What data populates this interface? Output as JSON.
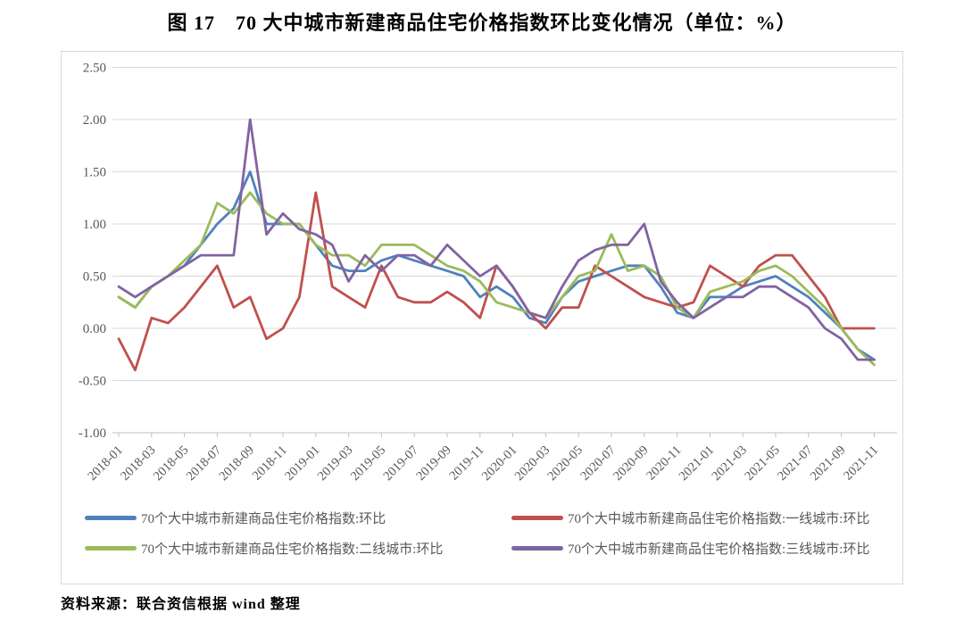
{
  "page": {
    "title": "图 17　70 大中城市新建商品住宅价格指数环比变化情况（单位：%）",
    "source": "资料来源：联合资信根据 wind 整理"
  },
  "chart_data": {
    "type": "line",
    "title": "图 17　70 大中城市新建商品住宅价格指数环比变化情况（单位：%）",
    "xlabel": "",
    "ylabel": "",
    "ylim": [
      -1.0,
      2.5
    ],
    "y_tick_labels": [
      "2.50",
      "2.00",
      "1.50",
      "1.00",
      "0.50",
      "0.00",
      "-0.50",
      "-1.00"
    ],
    "y_tick_values": [
      2.5,
      2.0,
      1.5,
      1.0,
      0.5,
      0.0,
      -0.5,
      -1.0
    ],
    "grid": true,
    "legend_position": "bottom",
    "axis_text_color": "#595959",
    "grid_color": "#d9d9d9",
    "axis_line_color": "#bfbfbf",
    "x_tick_labels": [
      "2018-01",
      "2018-03",
      "2018-05",
      "2018-07",
      "2018-09",
      "2018-11",
      "2019-01",
      "2019-03",
      "2019-05",
      "2019-07",
      "2019-09",
      "2019-11",
      "2020-01",
      "2020-03",
      "2020-05",
      "2020-07",
      "2020-09",
      "2020-11",
      "2021-01",
      "2021-03",
      "2021-05",
      "2021-07",
      "2021-09",
      "2021-11"
    ],
    "categories": [
      "2018-01",
      "2018-02",
      "2018-03",
      "2018-04",
      "2018-05",
      "2018-06",
      "2018-07",
      "2018-08",
      "2018-09",
      "2018-10",
      "2018-11",
      "2018-12",
      "2019-01",
      "2019-02",
      "2019-03",
      "2019-04",
      "2019-05",
      "2019-06",
      "2019-07",
      "2019-08",
      "2019-09",
      "2019-10",
      "2019-11",
      "2019-12",
      "2020-01",
      "2020-02",
      "2020-03",
      "2020-04",
      "2020-05",
      "2020-06",
      "2020-07",
      "2020-08",
      "2020-09",
      "2020-10",
      "2020-11",
      "2020-12",
      "2021-01",
      "2021-02",
      "2021-03",
      "2021-04",
      "2021-05",
      "2021-06",
      "2021-07",
      "2021-08",
      "2021-09",
      "2021-10",
      "2021-11"
    ],
    "series": [
      {
        "name": "70个大中城市新建商品住宅价格指数:环比",
        "color": "#4f81bd",
        "values": [
          0.3,
          0.2,
          0.4,
          0.5,
          0.6,
          0.8,
          1.0,
          1.15,
          1.5,
          1.0,
          1.0,
          1.0,
          0.8,
          0.6,
          0.55,
          0.55,
          0.65,
          0.7,
          0.65,
          0.6,
          0.55,
          0.5,
          0.3,
          0.4,
          0.3,
          0.1,
          0.05,
          0.3,
          0.45,
          0.5,
          0.55,
          0.6,
          0.6,
          0.4,
          0.15,
          0.1,
          0.3,
          0.3,
          0.4,
          0.45,
          0.5,
          0.4,
          0.3,
          0.15,
          0.0,
          -0.2,
          -0.3
        ]
      },
      {
        "name": "70个大中城市新建商品住宅价格指数:一线城市:环比",
        "color": "#c0504d",
        "values": [
          -0.1,
          -0.4,
          0.1,
          0.05,
          0.2,
          0.4,
          0.6,
          0.2,
          0.3,
          -0.1,
          0.0,
          0.3,
          1.3,
          0.4,
          0.3,
          0.2,
          0.6,
          0.3,
          0.25,
          0.25,
          0.35,
          0.25,
          0.1,
          0.6,
          0.4,
          0.15,
          0.0,
          0.2,
          0.2,
          0.6,
          0.5,
          0.4,
          0.3,
          0.25,
          0.2,
          0.25,
          0.6,
          0.5,
          0.4,
          0.6,
          0.7,
          0.7,
          0.5,
          0.3,
          0.0,
          0.0,
          0.0
        ]
      },
      {
        "name": "70个大中城市新建商品住宅价格指数:二线城市:环比",
        "color": "#9bbb59",
        "values": [
          0.3,
          0.2,
          0.4,
          0.5,
          0.65,
          0.8,
          1.2,
          1.1,
          1.3,
          1.1,
          1.0,
          1.0,
          0.8,
          0.7,
          0.7,
          0.6,
          0.8,
          0.8,
          0.8,
          0.7,
          0.6,
          0.55,
          0.45,
          0.25,
          0.2,
          0.15,
          0.1,
          0.3,
          0.5,
          0.55,
          0.9,
          0.55,
          0.6,
          0.5,
          0.2,
          0.1,
          0.35,
          0.4,
          0.45,
          0.55,
          0.6,
          0.5,
          0.35,
          0.2,
          0.0,
          -0.2,
          -0.35
        ]
      },
      {
        "name": "70个大中城市新建商品住宅价格指数:三线城市:环比",
        "color": "#8064a2",
        "values": [
          0.4,
          0.3,
          0.4,
          0.5,
          0.6,
          0.7,
          0.7,
          0.7,
          2.0,
          0.9,
          1.1,
          0.95,
          0.9,
          0.8,
          0.45,
          0.7,
          0.55,
          0.7,
          0.7,
          0.6,
          0.8,
          0.65,
          0.5,
          0.6,
          0.4,
          0.15,
          0.1,
          0.4,
          0.65,
          0.75,
          0.8,
          0.8,
          1.0,
          0.45,
          0.25,
          0.1,
          0.2,
          0.3,
          0.3,
          0.4,
          0.4,
          0.3,
          0.2,
          0.0,
          -0.1,
          -0.3,
          -0.3
        ]
      }
    ]
  }
}
